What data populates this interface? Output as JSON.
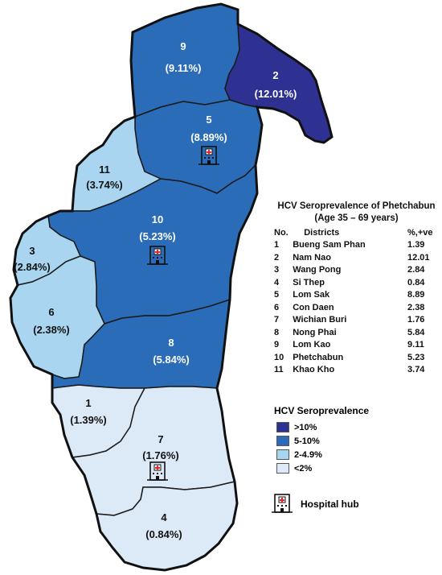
{
  "legend": {
    "title_line1": "HCV Seroprevalence of Phetchabun",
    "title_line2": "(Age 35 – 69 years)",
    "col_no": "No.",
    "col_district": "Districts",
    "col_value": "%,+ve",
    "districts": [
      {
        "no": "1",
        "name": "Bueng Sam Phan",
        "value": "1.39"
      },
      {
        "no": "2",
        "name": "Nam Nao",
        "value": "12.01"
      },
      {
        "no": "3",
        "name": "Wang Pong",
        "value": "2.84"
      },
      {
        "no": "4",
        "name": "Si Thep",
        "value": "0.84"
      },
      {
        "no": "5",
        "name": "Lom Sak",
        "value": "8.89"
      },
      {
        "no": "6",
        "name": "Con Daen",
        "value": "2.38"
      },
      {
        "no": "7",
        "name": "Wichian Buri",
        "value": "1.76"
      },
      {
        "no": "8",
        "name": "Nong Phai",
        "value": "5.84"
      },
      {
        "no": "9",
        "name": "Lom Kao",
        "value": "9.11"
      },
      {
        "no": "10",
        "name": "Phetchabun",
        "value": "5.23"
      },
      {
        "no": "11",
        "name": "Khao Kho",
        "value": "3.74"
      }
    ]
  },
  "scale": {
    "title": "HCV Seroprevalence",
    "items": [
      {
        "label": ">10%",
        "color": "#2e3192"
      },
      {
        "label": "5-10%",
        "color": "#2b6cb8"
      },
      {
        "label": "2-4.9%",
        "color": "#a9d5f0"
      },
      {
        "label": "<2%",
        "color": "#dce9f7"
      }
    ]
  },
  "hub_label": "Hospital hub",
  "map_labels": {
    "d1": {
      "no": "1",
      "pct": "(1.39%)"
    },
    "d2": {
      "no": "2",
      "pct": "(12.01%)"
    },
    "d3": {
      "no": "3",
      "pct": "(2.84%)"
    },
    "d4": {
      "no": "4",
      "pct": "(0.84%)"
    },
    "d5": {
      "no": "5",
      "pct": "(8.89%)"
    },
    "d6": {
      "no": "6",
      "pct": "(2.38%)"
    },
    "d7": {
      "no": "7",
      "pct": "(1.76%)"
    },
    "d8": {
      "no": "8",
      "pct": "(5.84%)"
    },
    "d9": {
      "no": "9",
      "pct": "(9.11%)"
    },
    "d10": {
      "no": "10",
      "pct": "(5.23%)"
    },
    "d11": {
      "no": "11",
      "pct": "(3.74%)"
    }
  },
  "icons": {
    "hospital": "hospital-icon"
  }
}
